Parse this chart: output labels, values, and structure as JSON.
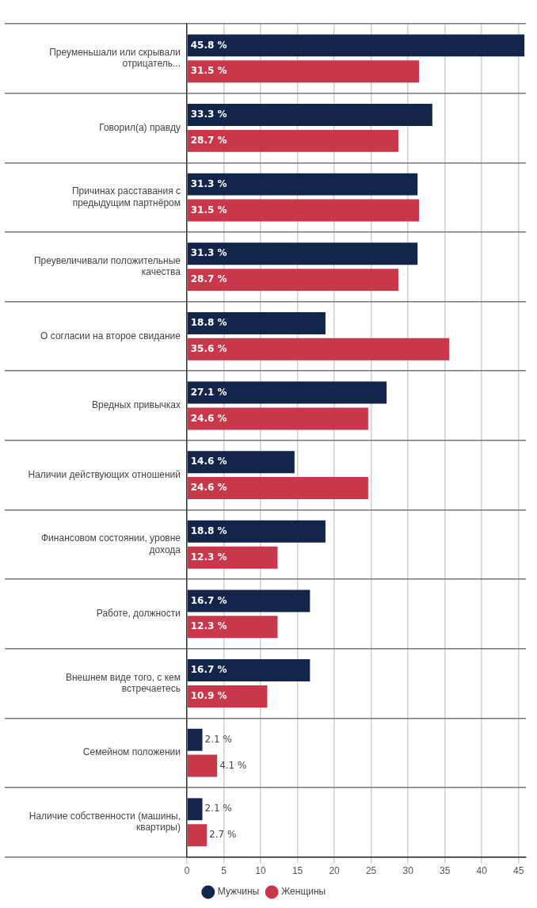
{
  "chart_data": {
    "type": "bar",
    "orientation": "horizontal",
    "categories": [
      "Преуменьшали или скрывали отрицатель...",
      "Говорил(а) правду",
      "Причинах расставания с предыдущим партнёром",
      "Преувеличивали положительные качества",
      "О согласии на второе свидание",
      "Вредных привычках",
      "Наличии действующих отношений",
      "Финансовом состоянии, уровне дохода",
      "Работе, должности",
      "Внешнем виде того, с кем встречаетесь",
      "Семейном положении",
      "Наличие собственности (машины, квартиры)"
    ],
    "series": [
      {
        "name": "Мужчины",
        "color": "#13254a",
        "values": [
          45.8,
          33.3,
          31.3,
          31.3,
          18.8,
          27.1,
          14.6,
          18.8,
          16.7,
          16.7,
          2.1,
          2.1
        ],
        "value_labels": [
          "45.8 %",
          "33.3 %",
          "31.3 %",
          "31.3 %",
          "18.8 %",
          "27.1 %",
          "14.6 %",
          "18.8 %",
          "16.7 %",
          "16.7 %",
          "2.1 %",
          "2.1 %"
        ]
      },
      {
        "name": "Женщины",
        "color": "#c8374a",
        "values": [
          31.5,
          28.7,
          31.5,
          28.7,
          35.6,
          24.6,
          24.6,
          12.3,
          12.3,
          10.9,
          4.1,
          2.7
        ],
        "value_labels": [
          "31.5 %",
          "28.7 %",
          "31.5 %",
          "28.7 %",
          "35.6 %",
          "24.6 %",
          "24.6 %",
          "12.3 %",
          "12.3 %",
          "10.9 %",
          "4.1 %",
          "2.7 %"
        ]
      }
    ],
    "xlim": [
      0,
      46
    ],
    "xticks": [
      0,
      5,
      10,
      15,
      20,
      25,
      30,
      35,
      40,
      45
    ],
    "grid": true,
    "legend": "bottom"
  }
}
